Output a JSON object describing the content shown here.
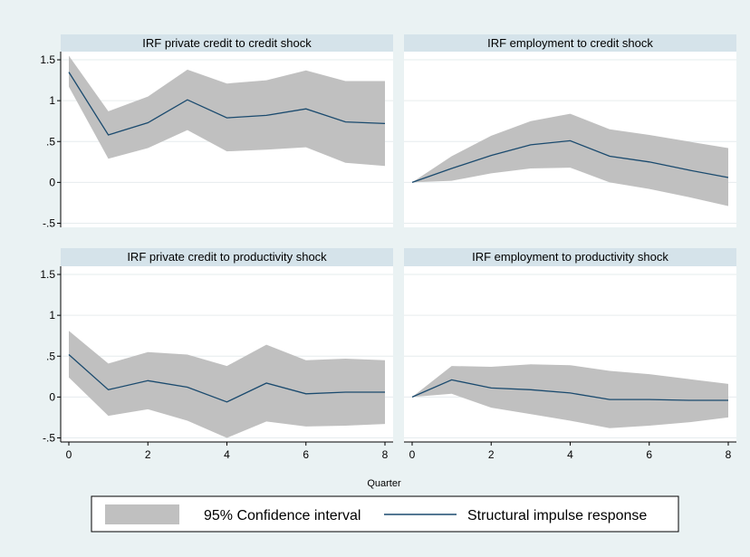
{
  "chart_data": {
    "type": "line",
    "xlabel": "Quarter",
    "x_ticks": [
      0,
      2,
      4,
      6,
      8
    ],
    "y_ticks": [
      1.5,
      1,
      0.5,
      0,
      -0.5
    ],
    "y_tick_labels": [
      "1.5",
      "1",
      ".5",
      "0",
      "-.5"
    ],
    "ylim": [
      -0.55,
      1.6
    ],
    "xlim": [
      0,
      8
    ],
    "grid": true,
    "legend_placement": "bottom",
    "colors": {
      "line": "#1a4a6e",
      "band": "#c0c0c0",
      "strip": "#d5e3ea",
      "plot_bg": "#ffffff",
      "outer_bg": "#eaf2f3"
    },
    "legend": [
      {
        "label": "95% Confidence interval",
        "kind": "band"
      },
      {
        "label": "Structural impulse response",
        "kind": "line"
      }
    ],
    "panels": [
      {
        "title": "IRF private credit to credit shock",
        "x": [
          0,
          1,
          2,
          3,
          4,
          5,
          6,
          7,
          8
        ],
        "irf": [
          1.35,
          0.58,
          0.73,
          1.01,
          0.79,
          0.82,
          0.9,
          0.74,
          0.72
        ],
        "lower": [
          1.17,
          0.29,
          0.42,
          0.64,
          0.38,
          0.4,
          0.43,
          0.24,
          0.2
        ],
        "upper": [
          1.55,
          0.87,
          1.05,
          1.38,
          1.21,
          1.25,
          1.37,
          1.24,
          1.24
        ]
      },
      {
        "title": "IRF employment to credit shock",
        "x": [
          0,
          1,
          2,
          3,
          4,
          5,
          6,
          7,
          8
        ],
        "irf": [
          0.0,
          0.17,
          0.33,
          0.46,
          0.51,
          0.32,
          0.25,
          0.15,
          0.06
        ],
        "lower": [
          0.0,
          0.02,
          0.11,
          0.17,
          0.18,
          0.0,
          -0.08,
          -0.18,
          -0.29
        ],
        "upper": [
          0.0,
          0.32,
          0.57,
          0.75,
          0.84,
          0.65,
          0.58,
          0.5,
          0.42
        ]
      },
      {
        "title": "IRF private credit to productivity shock",
        "x": [
          0,
          1,
          2,
          3,
          4,
          5,
          6,
          7,
          8
        ],
        "irf": [
          0.52,
          0.09,
          0.2,
          0.12,
          -0.06,
          0.17,
          0.04,
          0.06,
          0.06
        ],
        "lower": [
          0.24,
          -0.23,
          -0.15,
          -0.29,
          -0.5,
          -0.3,
          -0.36,
          -0.35,
          -0.33
        ],
        "upper": [
          0.81,
          0.41,
          0.55,
          0.52,
          0.38,
          0.64,
          0.45,
          0.47,
          0.45
        ]
      },
      {
        "title": "IRF employment to productivity shock",
        "x": [
          0,
          1,
          2,
          3,
          4,
          5,
          6,
          7,
          8
        ],
        "irf": [
          0.0,
          0.21,
          0.11,
          0.09,
          0.05,
          -0.03,
          -0.03,
          -0.04,
          -0.04
        ],
        "lower": [
          0.0,
          0.04,
          -0.13,
          -0.21,
          -0.29,
          -0.38,
          -0.35,
          -0.31,
          -0.25
        ],
        "upper": [
          0.0,
          0.38,
          0.37,
          0.4,
          0.39,
          0.32,
          0.28,
          0.22,
          0.16
        ]
      }
    ]
  }
}
